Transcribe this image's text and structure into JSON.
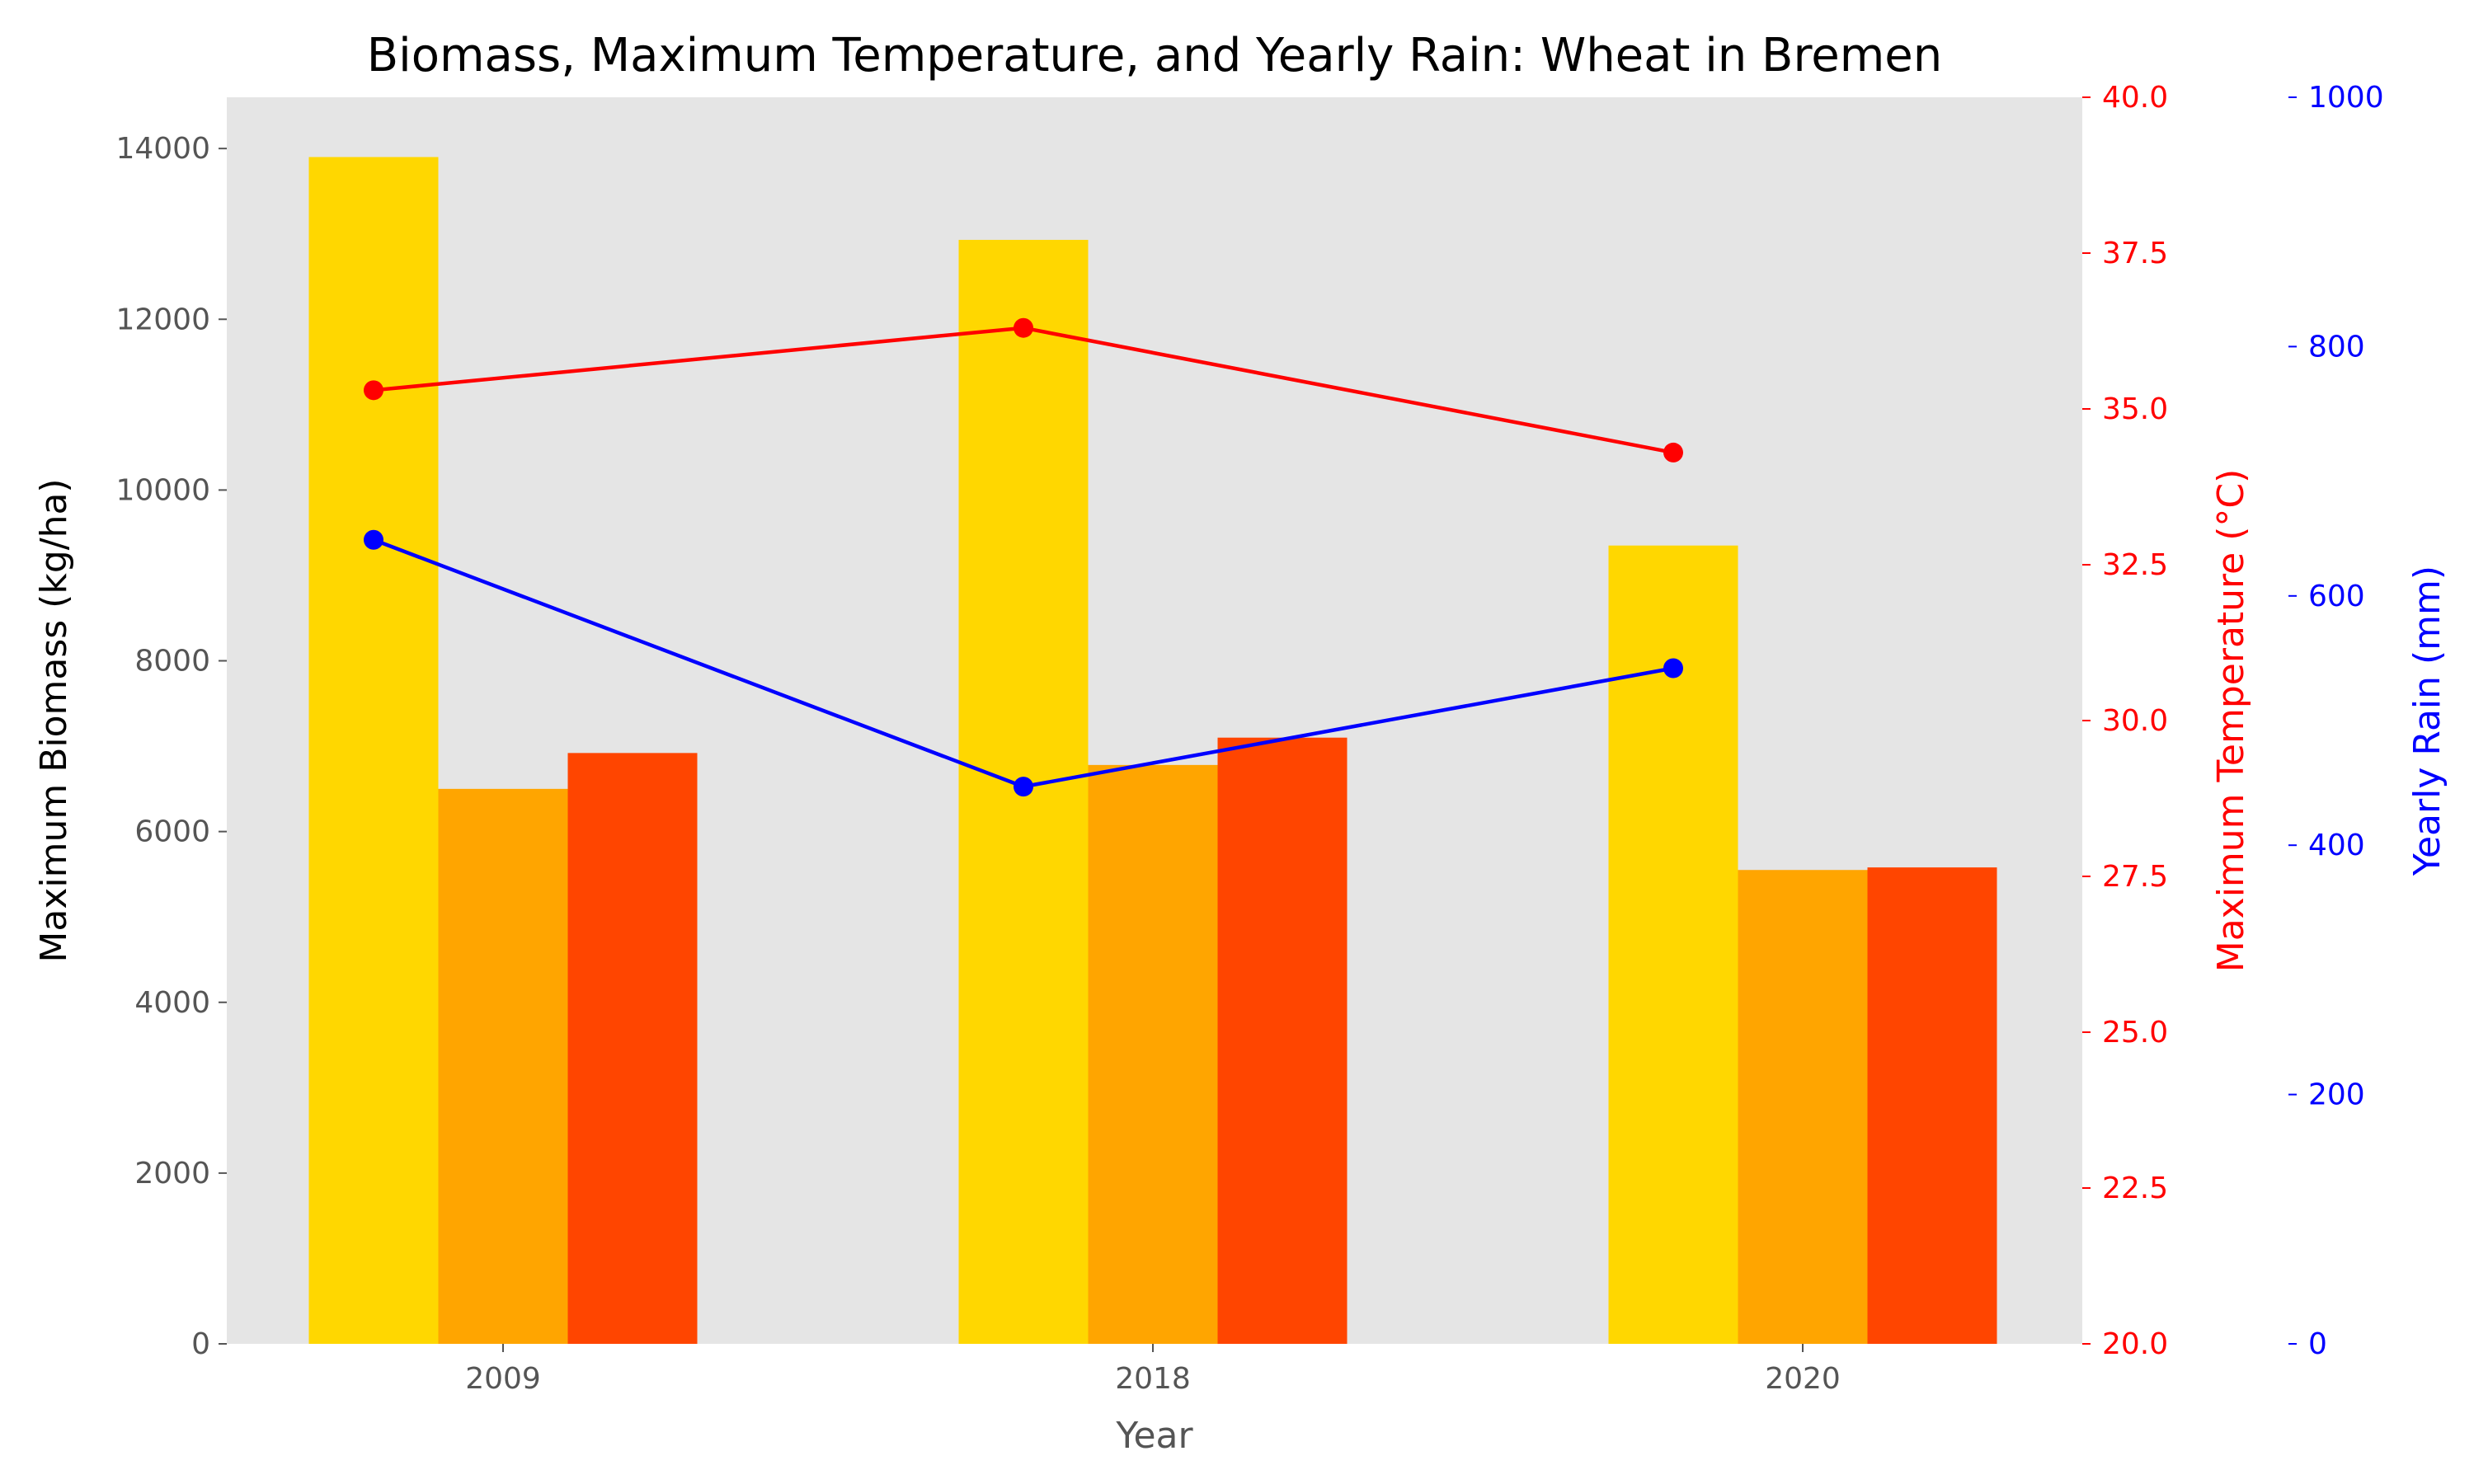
{
  "chart_data": {
    "type": "bar",
    "title": "Biomass, Maximum Temperature, and Yearly Rain: Wheat in Bremen",
    "xlabel": "Year",
    "categories": [
      "2009",
      "2018",
      "2020"
    ],
    "bar_series": [
      {
        "values": [
          13900,
          12930,
          9350
        ],
        "color": "#FFD700"
      },
      {
        "values": [
          6500,
          6780,
          5550
        ],
        "color": "#FFA500"
      },
      {
        "values": [
          6920,
          7100,
          5580
        ],
        "color": "#FF4500"
      }
    ],
    "ylabel": "Maximum Biomass (kg/ha)",
    "ylim": [
      0,
      14600
    ],
    "yticks": [
      0,
      2000,
      4000,
      6000,
      8000,
      10000,
      12000,
      14000
    ],
    "temperature": {
      "ylabel": "Maximum Temperature (°C)",
      "values": [
        35.3,
        36.3,
        34.3
      ],
      "ylim": [
        20.0,
        40.0
      ],
      "yticks": [
        "20.0",
        "22.5",
        "25.0",
        "27.5",
        "30.0",
        "32.5",
        "35.0",
        "37.5",
        "40.0"
      ],
      "color": "#FF0000"
    },
    "rain": {
      "ylabel": "Yearly Rain (mm)",
      "values": [
        645,
        447,
        542
      ],
      "ylim": [
        0,
        1000
      ],
      "yticks": [
        0,
        200,
        400,
        600,
        800,
        1000
      ],
      "color": "#0000FF"
    },
    "grid": false,
    "background": "#E5E5E5",
    "legend": "none"
  }
}
